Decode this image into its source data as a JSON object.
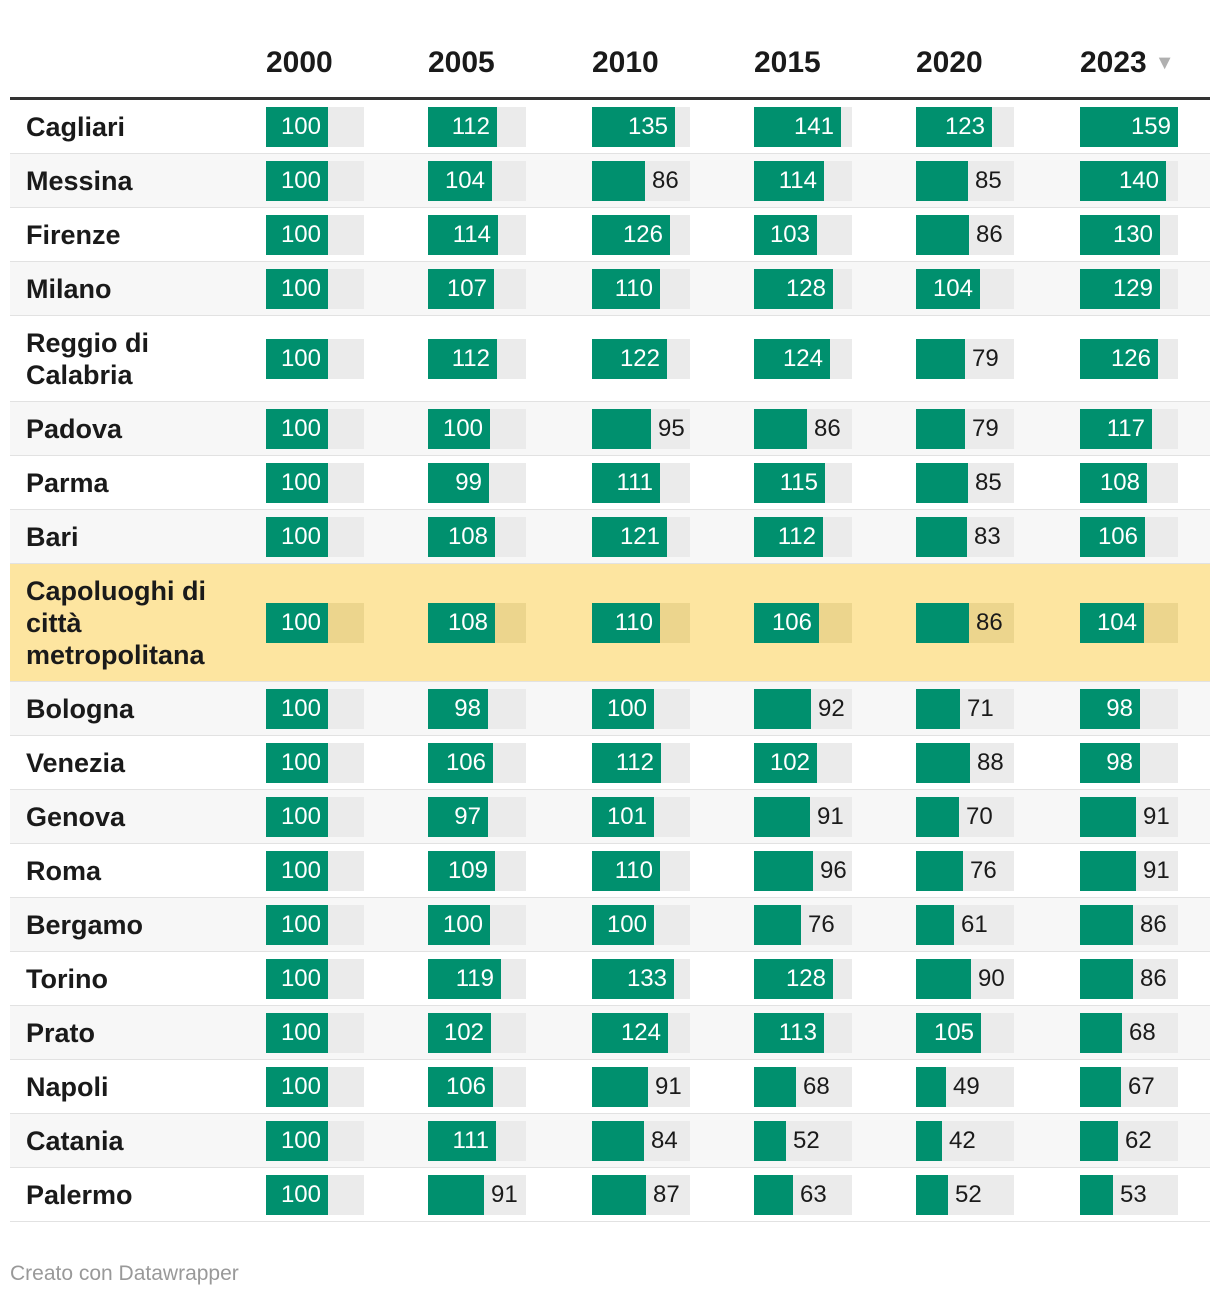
{
  "columns": [
    "2000",
    "2005",
    "2010",
    "2015",
    "2020",
    "2023"
  ],
  "sort_indicator": "▼",
  "accent_color": "#00906e",
  "highlight_color": "#fde5a0",
  "chart_data": {
    "type": "table",
    "categories": [
      "2000",
      "2005",
      "2010",
      "2015",
      "2020",
      "2023"
    ],
    "highlighted_row": "Capoluoghi di città metropolitana",
    "sorted_by": "2023",
    "sort_order": "descending",
    "scale_max": 159,
    "rows": [
      {
        "name": "Cagliari",
        "values": [
          100,
          112,
          135,
          141,
          123,
          159
        ]
      },
      {
        "name": "Messina",
        "values": [
          100,
          104,
          86,
          114,
          85,
          140
        ]
      },
      {
        "name": "Firenze",
        "values": [
          100,
          114,
          126,
          103,
          86,
          130
        ]
      },
      {
        "name": "Milano",
        "values": [
          100,
          107,
          110,
          128,
          104,
          129
        ]
      },
      {
        "name": "Reggio di Calabria",
        "values": [
          100,
          112,
          122,
          124,
          79,
          126
        ]
      },
      {
        "name": "Padova",
        "values": [
          100,
          100,
          95,
          86,
          79,
          117
        ]
      },
      {
        "name": "Parma",
        "values": [
          100,
          99,
          111,
          115,
          85,
          108
        ]
      },
      {
        "name": "Bari",
        "values": [
          100,
          108,
          121,
          112,
          83,
          106
        ]
      },
      {
        "name": "Capoluoghi di città metropolitana",
        "values": [
          100,
          108,
          110,
          106,
          86,
          104
        ]
      },
      {
        "name": "Bologna",
        "values": [
          100,
          98,
          100,
          92,
          71,
          98
        ]
      },
      {
        "name": "Venezia",
        "values": [
          100,
          106,
          112,
          102,
          88,
          98
        ]
      },
      {
        "name": "Genova",
        "values": [
          100,
          97,
          101,
          91,
          70,
          91
        ]
      },
      {
        "name": "Roma",
        "values": [
          100,
          109,
          110,
          96,
          76,
          91
        ]
      },
      {
        "name": "Bergamo",
        "values": [
          100,
          100,
          100,
          76,
          61,
          86
        ]
      },
      {
        "name": "Torino",
        "values": [
          100,
          119,
          133,
          128,
          90,
          86
        ]
      },
      {
        "name": "Prato",
        "values": [
          100,
          102,
          124,
          113,
          105,
          68
        ]
      },
      {
        "name": "Napoli",
        "values": [
          100,
          106,
          91,
          68,
          49,
          67
        ]
      },
      {
        "name": "Catania",
        "values": [
          100,
          111,
          84,
          52,
          42,
          62
        ]
      },
      {
        "name": "Palermo",
        "values": [
          100,
          91,
          87,
          63,
          52,
          53
        ]
      }
    ]
  },
  "footer": "Creato con Datawrapper"
}
